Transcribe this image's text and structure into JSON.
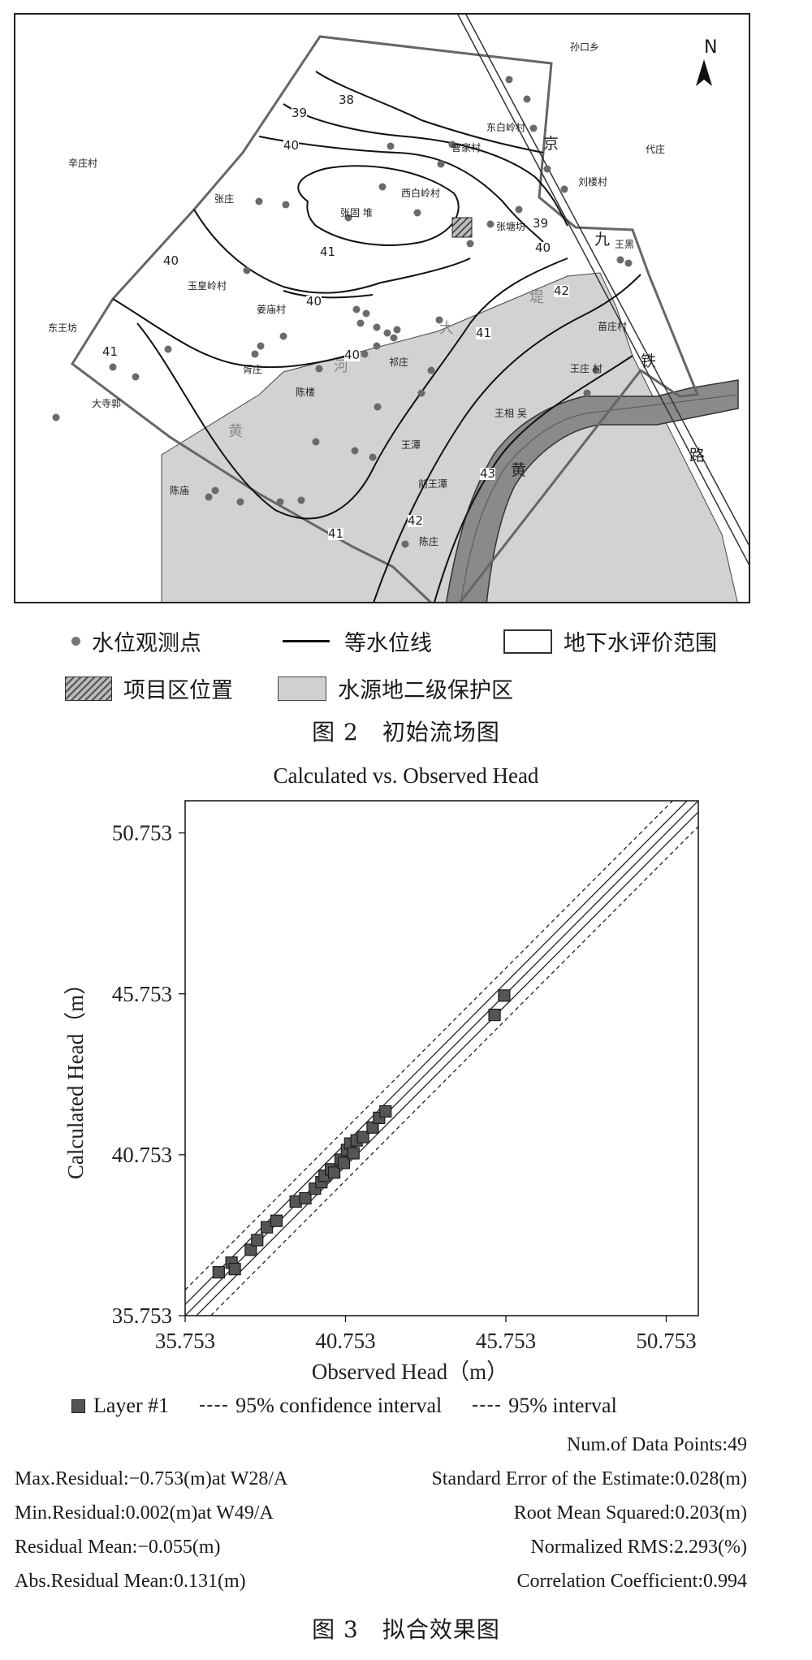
{
  "map": {
    "north_label": "N",
    "places": {
      "sunkouxiang": "孙口乡",
      "dongbailingcun": "东白岭村",
      "jing": "京",
      "daizhuang": "代庄",
      "xinzhuangcun": "辛庄村",
      "caojiacun": "曹家村",
      "liuhuocun": "刘楼村",
      "zhangzhuang": "张庄",
      "xibailingcun": "西白岭村",
      "zhanggudui": "张固 堆",
      "zhangtangfang": "张塘坊",
      "jiu": "九",
      "wanghei": "王黑",
      "yuhuanglingcun": "玉皇岭村",
      "jiangmiaocun": "姜庙村",
      "ti": "堤",
      "da": "大",
      "dongwangfang": "东王坊",
      "miaocun": "苗庄村",
      "qizhuang": "祁庄",
      "xuzhuang": "胥庄",
      "he": "河",
      "chenlou": "陈楼",
      "wangzhuangcun": "王庄 村",
      "tie": "铁",
      "dasiguo": "大寺郭",
      "wangxiangwu": "王相 吴",
      "huang_left": "黄",
      "wangtan": "王潭",
      "huang_right": "黄",
      "lu": "路",
      "qianwangtan": "前王潭",
      "chenmiao": "陈庙",
      "chenzhuang": "陈庄"
    },
    "contours": {
      "c38": "38",
      "c39a": "39",
      "c40a": "40",
      "c40b": "40",
      "c41a": "41",
      "c40c": "40",
      "c39b": "39",
      "c40d": "40",
      "c40e": "40",
      "c41b": "41",
      "c41c": "41",
      "c42a": "42",
      "c42b": "42",
      "c43": "43",
      "c41d": "41"
    }
  },
  "legend": {
    "obs_point": "水位观测点",
    "contour": "等水位线",
    "eval_range": "地下水评价范围",
    "project": "项目区位置",
    "protect": "水源地二级保护区"
  },
  "fig2_caption": "图 2　初始流场图",
  "chart_data": {
    "type": "scatter",
    "title": "Calculated vs. Observed Head",
    "xlabel": "Observed Head（m）",
    "ylabel": "Calculated Head（m）",
    "xlim": [
      35.753,
      51.753
    ],
    "ylim": [
      35.753,
      51.753
    ],
    "xticks": [
      "35.753",
      "40.753",
      "45.753",
      "50.753"
    ],
    "yticks": [
      "35.753",
      "40.753",
      "45.753",
      "50.753"
    ],
    "series": [
      {
        "name": "Layer #1",
        "x": [
          36.8,
          37.2,
          37.3,
          37.8,
          38.0,
          38.3,
          38.6,
          39.2,
          39.5,
          39.8,
          40.0,
          40.1,
          40.3,
          40.4,
          40.6,
          40.7,
          40.8,
          40.9,
          41.0,
          41.1,
          41.3,
          41.6,
          41.8,
          42.0,
          45.4,
          45.7
        ],
        "y": [
          37.1,
          37.4,
          37.2,
          37.8,
          38.1,
          38.5,
          38.7,
          39.3,
          39.4,
          39.7,
          39.9,
          40.1,
          40.3,
          40.2,
          40.6,
          40.5,
          40.9,
          41.1,
          40.8,
          41.2,
          41.3,
          41.6,
          41.9,
          42.1,
          45.1,
          45.7
        ]
      }
    ],
    "legend": [
      "Layer #1",
      "95% confidence interval",
      "95% interval"
    ],
    "grid": false
  },
  "stats": {
    "num_points": "Num.of Data Points:49",
    "max_residual": "Max.Residual:−0.753(m)at W28/A",
    "std_error": "Standard Error of the Estimate:0.028(m)",
    "min_residual": "Min.Residual:0.002(m)at W49/A",
    "rms": "Root Mean Squared:0.203(m)",
    "residual_mean": "Residual Mean:−0.055(m)",
    "nrms": "Normalized RMS:2.293(%)",
    "abs_residual_mean": "Abs.Residual Mean:0.131(m)",
    "correlation": "Correlation Coefficient:0.994"
  },
  "fig3_caption": "图 3　拟合效果图"
}
